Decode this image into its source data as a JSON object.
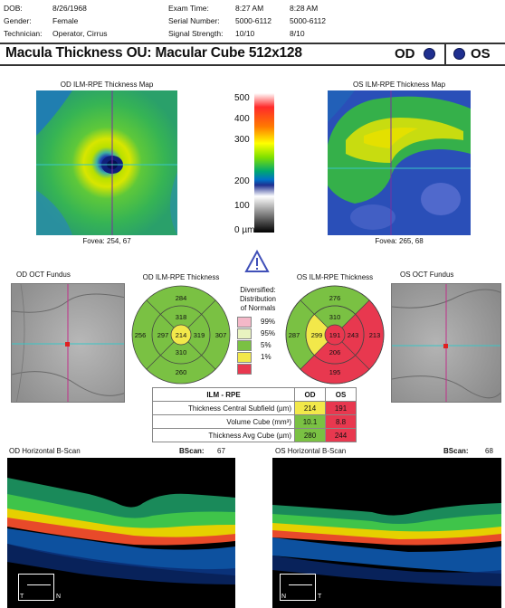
{
  "patient": {
    "dob_label": "DOB:",
    "dob": "8/26/1968",
    "gender_label": "Gender:",
    "gender": "Female",
    "tech_label": "Technician:",
    "technician": "Operator, Cirrus"
  },
  "exam": {
    "time_label": "Exam Time:",
    "time_od": "8:27 AM",
    "time_os": "8:28 AM",
    "serial_label": "Serial Number:",
    "serial_od": "5000-6112",
    "serial_os": "5000-6112",
    "signal_label": "Signal Strength:",
    "signal_od": "10/10",
    "signal_os": "8/10"
  },
  "title": "Macula Thickness OU: Macular Cube 512x128",
  "eyes": {
    "od": "OD",
    "os": "OS"
  },
  "maps": {
    "od_title": "OD ILM-RPE Thickness Map",
    "os_title": "OS ILM-RPE Thickness Map",
    "od_fovea": "Fovea: 254, 67",
    "os_fovea": "Fovea: 265, 68"
  },
  "colorbar": {
    "labels": [
      "500",
      "400",
      "300",
      "200",
      "100",
      "0 µm"
    ],
    "stops": [
      "#ffffff",
      "#ff2a2a",
      "#ff8a00",
      "#ffff00",
      "#7fe000",
      "#00b06a",
      "#0072c8",
      "#1f2f90",
      "#ffffff",
      "#000000"
    ]
  },
  "warning_icon": "warning-triangle-icon",
  "fundus": {
    "od_title": "OD OCT Fundus",
    "os_title": "OS OCT Fundus"
  },
  "etdrs": {
    "od_title": "OD ILM-RPE Thickness",
    "os_title": "OS ILM-RPE Thickness",
    "od": {
      "outer_top": "284",
      "inner_top": "318",
      "outer_left": "256",
      "inner_left": "297",
      "center": "214",
      "inner_right": "319",
      "outer_right": "307",
      "inner_bottom": "310",
      "outer_bottom": "260"
    },
    "os": {
      "outer_top": "276",
      "inner_top": "310",
      "outer_left": "287",
      "inner_left": "299",
      "center": "191",
      "inner_right": "243",
      "outer_right": "213",
      "inner_bottom": "206",
      "outer_bottom": "195"
    }
  },
  "legend": {
    "title_lines": [
      "Diversified:",
      "Distribution",
      "of Normals"
    ],
    "items": [
      {
        "label": "99%",
        "color": "#f4b8c8"
      },
      {
        "label": "95%",
        "color": "#e9f3c0"
      },
      {
        "label": "5%",
        "color": "#7ac143"
      },
      {
        "label": "1%",
        "color": "#f2e84a"
      },
      {
        "label": "",
        "color": "#e8384f"
      }
    ]
  },
  "table": {
    "headers": [
      "ILM - RPE",
      "OD",
      "OS"
    ],
    "rows": [
      {
        "label": "Thickness Central Subfield (µm)",
        "od": "214",
        "os": "191"
      },
      {
        "label": "Volume Cube (mm³)",
        "od": "10.1",
        "os": "8.8"
      },
      {
        "label": "Thickness Avg Cube (µm)",
        "od": "280",
        "os": "244"
      }
    ]
  },
  "bscans": {
    "od_title": "OD Horizontal B-Scan",
    "od_label": "BScan:",
    "od_value": "67",
    "os_title": "OS Horizontal B-Scan",
    "os_label": "BScan:",
    "os_value": "68",
    "od_t": "T",
    "od_n": "N",
    "os_n": "N",
    "os_t": "T"
  }
}
